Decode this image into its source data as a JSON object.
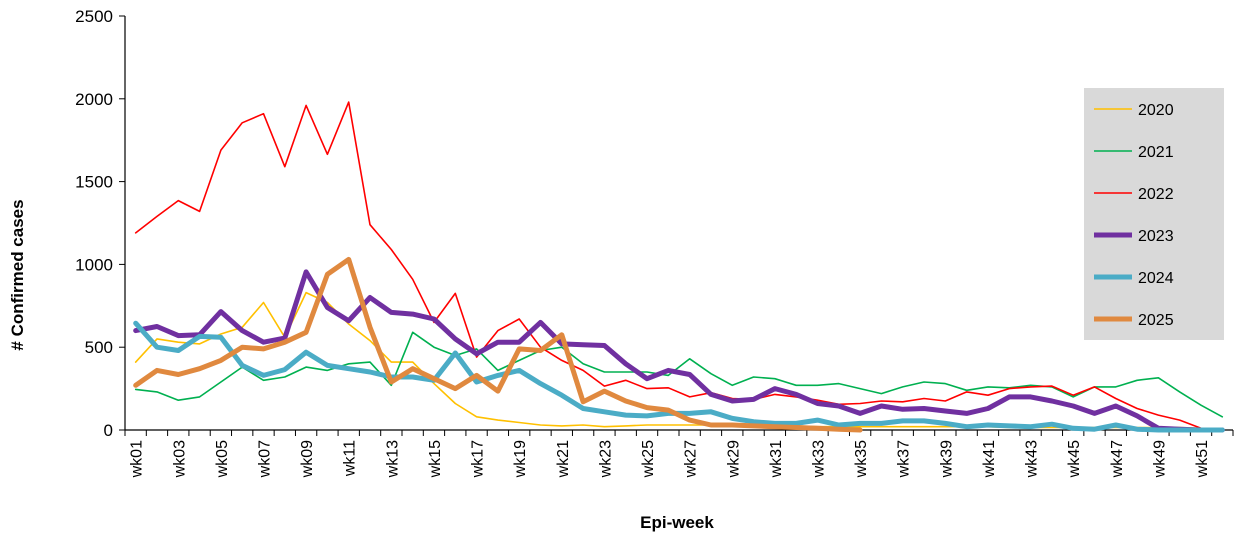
{
  "chart_data": {
    "type": "line",
    "title": "",
    "xlabel": "Epi-week",
    "ylabel": "# Confirmed cases",
    "ylim": [
      0,
      2500
    ],
    "yticks": [
      0,
      500,
      1000,
      1500,
      2000,
      2500
    ],
    "grid": false,
    "legend_position": "right",
    "x": [
      "wk01",
      "wk02",
      "wk03",
      "wk04",
      "wk05",
      "wk06",
      "wk07",
      "wk08",
      "wk09",
      "wk10",
      "wk11",
      "wk12",
      "wk13",
      "wk14",
      "wk15",
      "wk16",
      "wk17",
      "wk18",
      "wk19",
      "wk20",
      "wk21",
      "wk22",
      "wk23",
      "wk24",
      "wk25",
      "wk26",
      "wk27",
      "wk28",
      "wk29",
      "wk30",
      "wk31",
      "wk32",
      "wk33",
      "wk34",
      "wk35",
      "wk36",
      "wk37",
      "wk38",
      "wk39",
      "wk40",
      "wk41",
      "wk42",
      "wk43",
      "wk44",
      "wk45",
      "wk46",
      "wk47",
      "wk48",
      "wk49",
      "wk50",
      "wk51",
      "wk52"
    ],
    "xtick_labels": [
      "wk01",
      "wk03",
      "wk05",
      "wk07",
      "wk09",
      "wk11",
      "wk13",
      "wk15",
      "wk17",
      "wk19",
      "wk21",
      "wk23",
      "wk25",
      "wk27",
      "wk29",
      "wk31",
      "wk33",
      "wk35",
      "wk37",
      "wk39",
      "wk41",
      "wk43",
      "wk45",
      "wk47",
      "wk49",
      "wk51"
    ],
    "series": [
      {
        "name": "2020",
        "color": "#FFC000",
        "width": 1.6,
        "values": [
          410,
          550,
          530,
          520,
          580,
          620,
          770,
          560,
          830,
          770,
          640,
          540,
          410,
          410,
          280,
          160,
          80,
          60,
          45,
          30,
          25,
          30,
          20,
          25,
          30,
          30,
          30,
          30,
          30,
          25,
          25,
          25,
          20,
          20,
          20,
          20,
          20,
          20,
          20,
          20,
          20,
          15,
          15,
          15,
          15,
          15,
          15,
          15,
          15,
          15,
          10,
          10
        ]
      },
      {
        "name": "2021",
        "color": "#00B050",
        "width": 1.6,
        "values": [
          245,
          230,
          180,
          200,
          290,
          380,
          300,
          320,
          380,
          360,
          400,
          410,
          270,
          590,
          500,
          450,
          490,
          360,
          420,
          480,
          500,
          400,
          350,
          350,
          350,
          330,
          430,
          340,
          270,
          320,
          310,
          270,
          270,
          280,
          250,
          220,
          260,
          290,
          280,
          240,
          260,
          255,
          270,
          260,
          200,
          260,
          260,
          300,
          315,
          230,
          150,
          80
        ]
      },
      {
        "name": "2022",
        "color": "#FF0000",
        "width": 1.6,
        "values": [
          1190,
          1290,
          1385,
          1320,
          1690,
          1855,
          1910,
          1590,
          1960,
          1665,
          1980,
          1240,
          1090,
          910,
          650,
          825,
          440,
          600,
          670,
          500,
          420,
          360,
          265,
          300,
          250,
          255,
          200,
          225,
          190,
          185,
          215,
          200,
          180,
          155,
          160,
          175,
          170,
          190,
          175,
          230,
          210,
          250,
          260,
          265,
          210,
          260,
          190,
          130,
          90,
          60,
          10,
          0
        ]
      },
      {
        "name": "2023",
        "color": "#7030A0",
        "width": 5,
        "values": [
          600,
          625,
          570,
          575,
          715,
          600,
          530,
          555,
          955,
          740,
          660,
          800,
          710,
          700,
          670,
          550,
          460,
          530,
          530,
          650,
          520,
          515,
          510,
          400,
          310,
          360,
          335,
          215,
          175,
          185,
          250,
          215,
          160,
          145,
          100,
          145,
          125,
          130,
          115,
          100,
          130,
          200,
          200,
          175,
          145,
          100,
          145,
          85,
          10,
          5,
          0,
          0
        ]
      },
      {
        "name": "2024",
        "color": "#4BACC6",
        "width": 5,
        "values": [
          645,
          500,
          480,
          565,
          560,
          390,
          330,
          365,
          470,
          390,
          370,
          350,
          320,
          320,
          300,
          465,
          290,
          330,
          360,
          280,
          210,
          130,
          110,
          90,
          85,
          100,
          100,
          110,
          70,
          50,
          40,
          40,
          60,
          30,
          40,
          40,
          55,
          55,
          40,
          20,
          30,
          25,
          20,
          35,
          10,
          5,
          30,
          5,
          0,
          0,
          0,
          0
        ]
      },
      {
        "name": "2025",
        "color": "#E0893F",
        "width": 5,
        "values": [
          270,
          360,
          335,
          370,
          420,
          500,
          490,
          530,
          590,
          940,
          1030,
          620,
          290,
          370,
          310,
          250,
          330,
          235,
          490,
          480,
          575,
          170,
          235,
          175,
          135,
          120,
          60,
          30,
          30,
          25,
          20,
          15,
          10,
          5,
          0,
          null,
          null,
          null,
          null,
          null,
          null,
          null,
          null,
          null,
          null,
          null,
          null,
          null,
          null,
          null,
          null,
          null
        ]
      }
    ]
  }
}
